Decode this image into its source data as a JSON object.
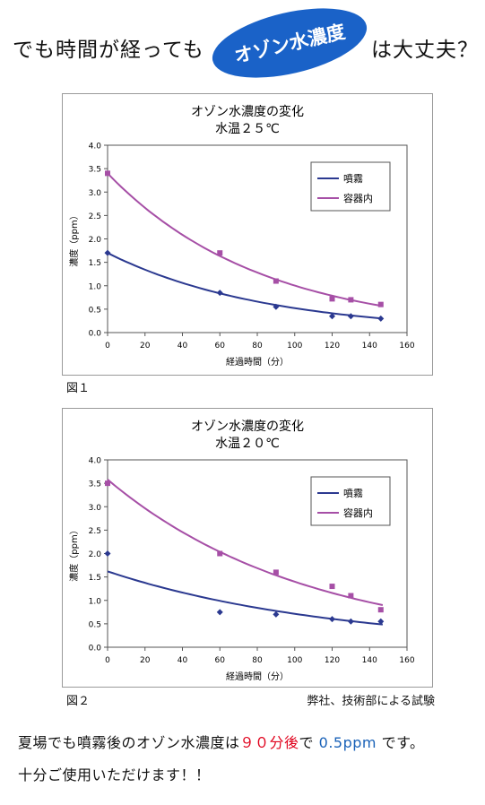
{
  "header": {
    "left_text": "でも時間が経っても",
    "badge_text": "オゾン水濃度",
    "right_text": "は大丈夫？",
    "badge_color": "#1a62c8"
  },
  "figures": [
    {
      "label": "図１"
    },
    {
      "label": "図２"
    }
  ],
  "source_note": "弊社、技術部による試験",
  "footer": {
    "line1_a": "夏場でも噴霧後のオゾン水濃度は",
    "line1_red": "９０分後",
    "line1_b": "で",
    "line1_blue": "0.5ppm",
    "line1_c": "です。",
    "line2": "十分ご使用いただけます！！"
  },
  "colors": {
    "spray": "#2b3990",
    "container": "#a64fa6"
  },
  "chart_data": [
    {
      "type": "scatter",
      "title": "オゾン水濃度の変化",
      "subtitle": "水温２５℃",
      "xlabel": "経過時間（分）",
      "ylabel": "濃度（ppm）",
      "xlim": [
        0,
        160
      ],
      "ylim": [
        0,
        4.0
      ],
      "xticks": [
        0,
        20,
        40,
        60,
        80,
        100,
        120,
        140,
        160
      ],
      "yticks": [
        "0.0",
        "0.5",
        "1.0",
        "1.5",
        "2.0",
        "2.5",
        "3.0",
        "3.5",
        "4.0"
      ],
      "grid": false,
      "legend": "top-right",
      "series": [
        {
          "name": "噴霧",
          "marker": "diamond",
          "color": "#2b3990",
          "x": [
            0,
            60,
            90,
            120,
            130,
            146
          ],
          "y": [
            1.7,
            0.85,
            0.55,
            0.35,
            0.35,
            0.3
          ],
          "trend": {
            "kind": "exponential",
            "a": 1.7,
            "k": 0.0118,
            "x_end": 147
          }
        },
        {
          "name": "容器内",
          "marker": "square",
          "color": "#a64fa6",
          "x": [
            0,
            60,
            90,
            120,
            130,
            146
          ],
          "y": [
            3.4,
            1.7,
            1.1,
            0.72,
            0.7,
            0.6
          ],
          "trend": {
            "kind": "exponential",
            "a": 3.4,
            "k": 0.0122,
            "x_end": 147
          }
        }
      ]
    },
    {
      "type": "scatter",
      "title": "オゾン水濃度の変化",
      "subtitle": "水温２０℃",
      "xlabel": "経過時間（分）",
      "ylabel": "濃度（ppm）",
      "xlim": [
        0,
        160
      ],
      "ylim": [
        0,
        4.0
      ],
      "xticks": [
        0,
        20,
        40,
        60,
        80,
        100,
        120,
        140,
        160
      ],
      "yticks": [
        "0.0",
        "0.5",
        "1.0",
        "1.5",
        "2.0",
        "2.5",
        "3.0",
        "3.5",
        "4.0"
      ],
      "grid": false,
      "legend": "top-right",
      "series": [
        {
          "name": "噴霧",
          "marker": "diamond",
          "color": "#2b3990",
          "x": [
            0,
            60,
            90,
            120,
            130,
            146
          ],
          "y": [
            2.0,
            0.75,
            0.7,
            0.6,
            0.55,
            0.55
          ],
          "trend": {
            "kind": "exponential",
            "a": 1.62,
            "k": 0.0082,
            "x_end": 147
          }
        },
        {
          "name": "容器内",
          "marker": "square",
          "color": "#a64fa6",
          "x": [
            0,
            60,
            90,
            120,
            130,
            146
          ],
          "y": [
            3.5,
            2.0,
            1.6,
            1.3,
            1.1,
            0.8
          ],
          "trend": {
            "kind": "exponential",
            "a": 3.58,
            "k": 0.0094,
            "x_end": 147
          }
        }
      ]
    }
  ]
}
